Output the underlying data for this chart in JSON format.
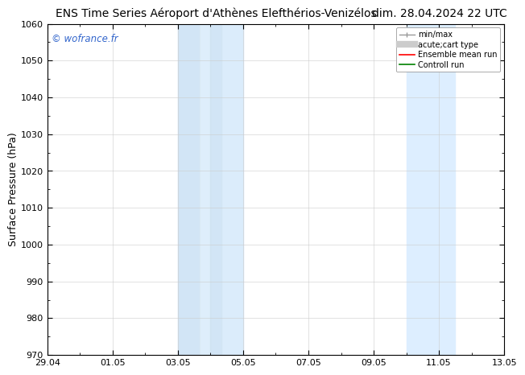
{
  "title": "ENS Time Series Aéroport d'Athènes Elefthérios-Venizélos",
  "date_label": "dim. 28.04.2024 22 UTC",
  "ylabel": "Surface Pressure (hPa)",
  "ylim": [
    970,
    1060
  ],
  "yticks": [
    970,
    980,
    990,
    1000,
    1010,
    1020,
    1030,
    1040,
    1050,
    1060
  ],
  "xlim_start": 0,
  "xlim_end": 14,
  "xtick_labels": [
    "29.04",
    "01.05",
    "03.05",
    "05.05",
    "07.05",
    "09.05",
    "11.05",
    "13.05"
  ],
  "xtick_positions": [
    0,
    2,
    4,
    6,
    8,
    10,
    12,
    14
  ],
  "shaded_bands": [
    {
      "x_start": 4.0,
      "x_end": 4.67,
      "color": "#d6eaf8"
    },
    {
      "x_start": 4.67,
      "x_end": 5.33,
      "color": "#e8f4fc"
    },
    {
      "x_start": 5.33,
      "x_end": 6.0,
      "color": "#d6eaf8"
    },
    {
      "x_start": 11.0,
      "x_end": 11.5,
      "color": "#d6eaf8"
    },
    {
      "x_start": 11.5,
      "x_end": 12.0,
      "color": "#e8f4fc"
    },
    {
      "x_start": 12.0,
      "x_end": 12.5,
      "color": "#d6eaf8"
    }
  ],
  "shaded_bands_simple": [
    {
      "x_start": 4.0,
      "x_end": 6.0,
      "color": "#ddeeff"
    },
    {
      "x_start": 11.0,
      "x_end": 12.5,
      "color": "#ddeeff"
    }
  ],
  "watermark_text": "© wofrance.fr",
  "watermark_color": "#3366cc",
  "bg_color": "#ffffff",
  "grid_color": "#cccccc",
  "title_fontsize": 10,
  "date_fontsize": 10,
  "axis_label_fontsize": 9,
  "tick_fontsize": 8
}
